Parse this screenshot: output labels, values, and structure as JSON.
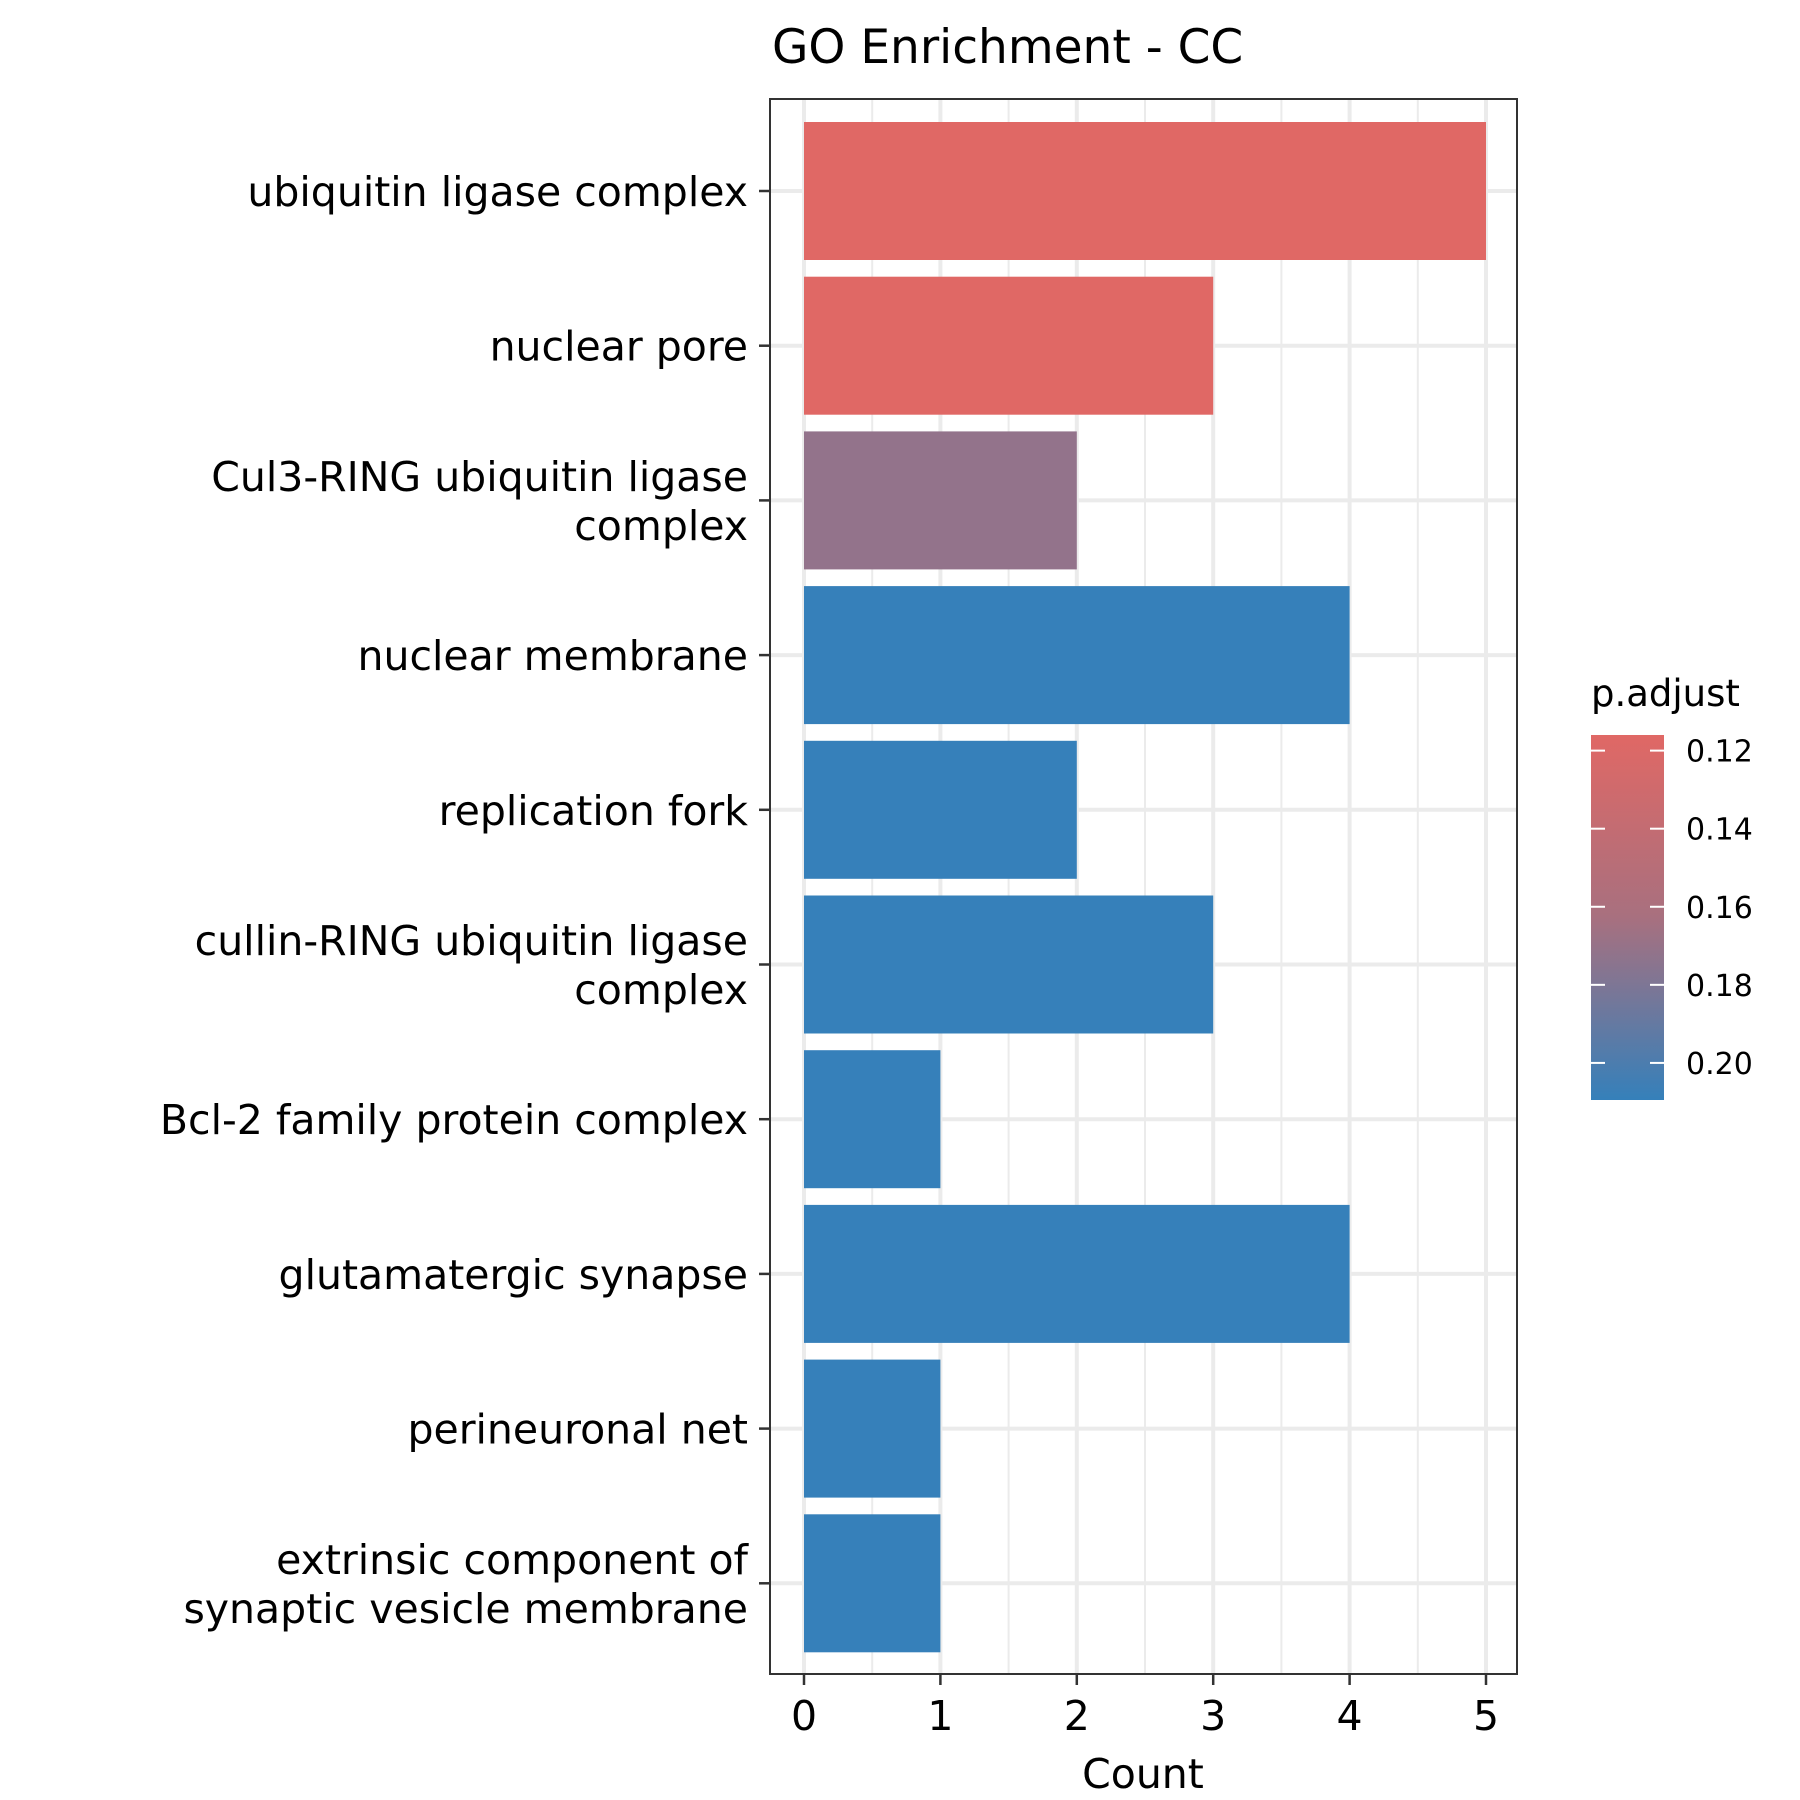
{
  "chart_data": {
    "type": "bar",
    "orientation": "horizontal",
    "title": "GO Enrichment - CC",
    "xlabel": "Count",
    "ylabel": "",
    "xlim": [
      0,
      5.25
    ],
    "x_ticks": [
      "0",
      "1",
      "2",
      "3",
      "4",
      "5"
    ],
    "grid": true,
    "categories": [
      [
        "ubiquitin ligase complex"
      ],
      [
        "nuclear pore"
      ],
      [
        "Cul3-RING ubiquitin ligase",
        "complex"
      ],
      [
        "nuclear membrane"
      ],
      [
        "replication fork"
      ],
      [
        "cullin-RING ubiquitin ligase",
        "complex"
      ],
      [
        "Bcl-2 family protein complex"
      ],
      [
        "glutamatergic synapse"
      ],
      [
        "perineuronal net"
      ],
      [
        "extrinsic component of",
        "synaptic vesicle membrane"
      ]
    ],
    "values": [
      5,
      3,
      2,
      4,
      2,
      3,
      1,
      4,
      1,
      1
    ],
    "p_adjust": [
      0.116,
      0.116,
      0.158,
      0.209,
      0.209,
      0.209,
      0.209,
      0.209,
      0.209,
      0.209
    ],
    "legend": {
      "title": "p.adjust",
      "placement": "right",
      "ticks": [
        "0.12",
        "0.14",
        "0.16",
        "0.18",
        "0.20"
      ],
      "tick_values": [
        0.12,
        0.14,
        0.16,
        0.18,
        0.2
      ],
      "range": [
        0.116,
        0.2095
      ],
      "low_color": "#E06865",
      "high_color": "#3580BA"
    }
  }
}
